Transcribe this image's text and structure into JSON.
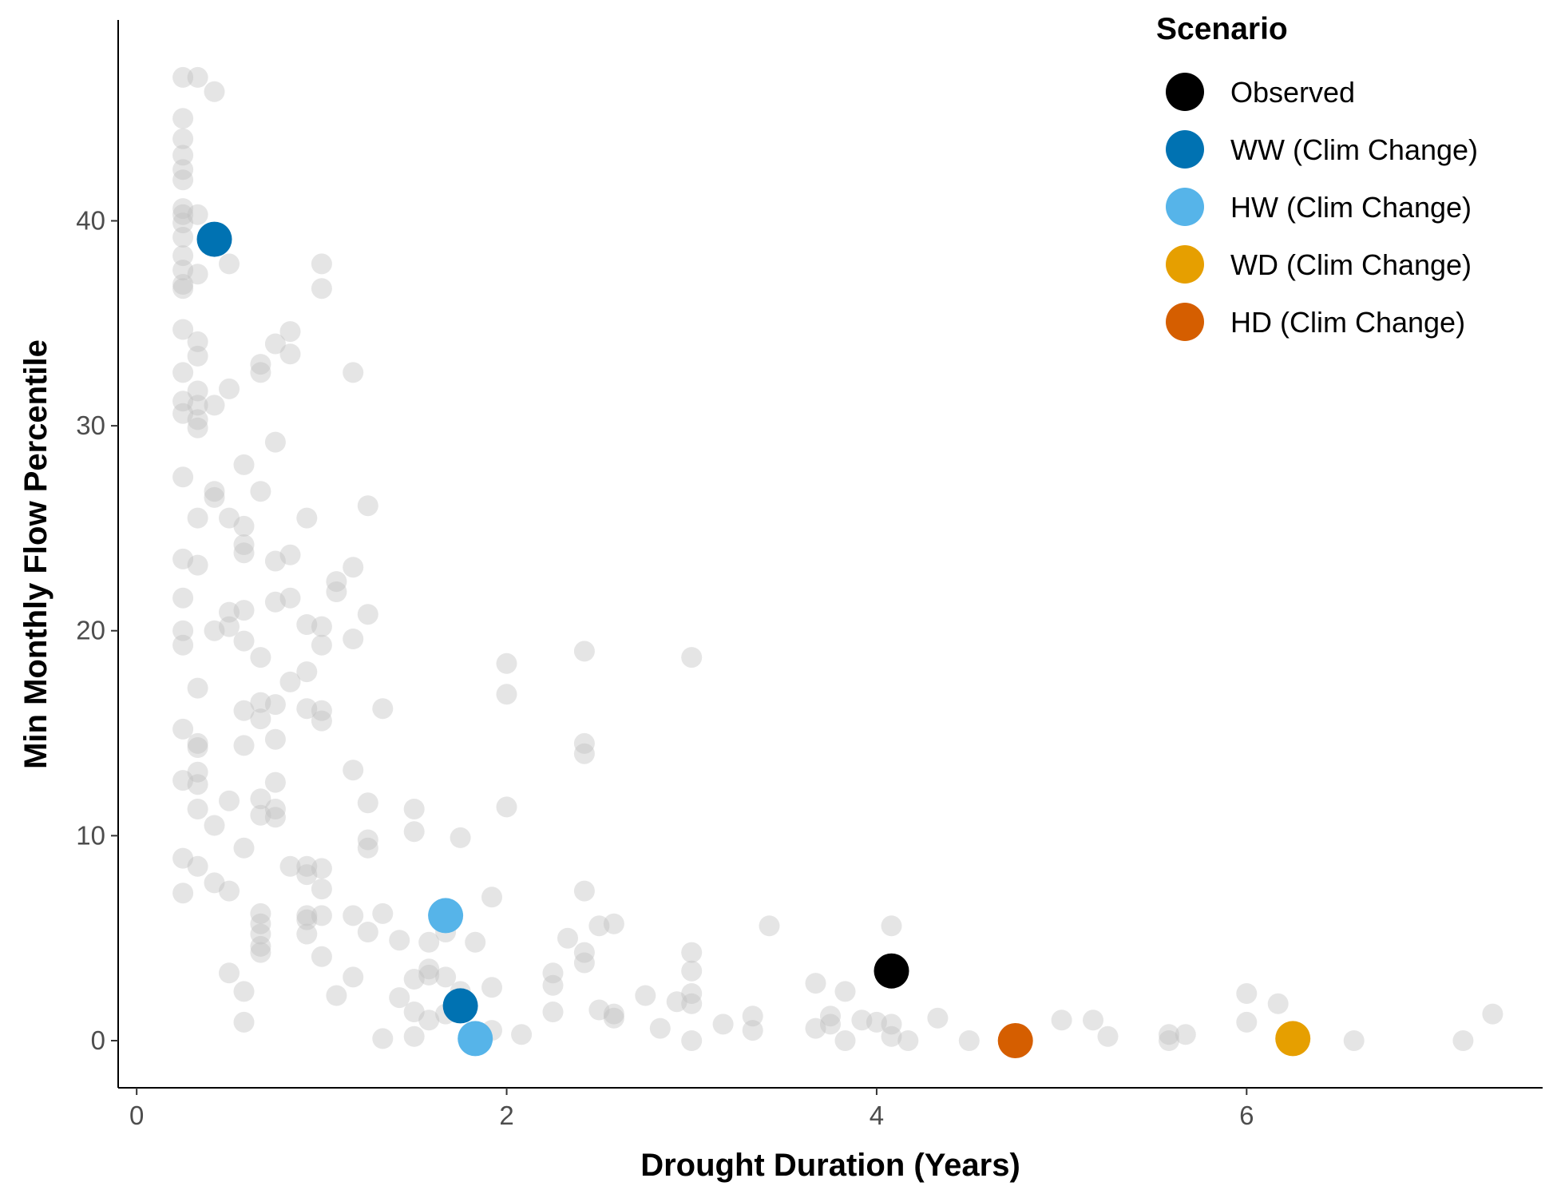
{
  "chart_data": {
    "type": "scatter",
    "xlabel": "Drought Duration (Years)",
    "ylabel": "Min Monthly Flow Percentile",
    "xlim": [
      -0.1,
      7.6
    ],
    "ylim": [
      -2.3,
      49.8
    ],
    "xticks": [
      0,
      2,
      4,
      6
    ],
    "yticks": [
      0,
      10,
      20,
      30,
      40
    ],
    "xtick_labels": [
      "0",
      "2",
      "4",
      "6"
    ],
    "ytick_labels": [
      "0",
      "10",
      "20",
      "30",
      "40"
    ],
    "grid": false,
    "legend": {
      "title": "Scenario",
      "position": "top-right",
      "entries": [
        {
          "label": "Observed",
          "color": "#000000"
        },
        {
          "label": "WW (Clim Change)",
          "color": "#0072B2"
        },
        {
          "label": "HW (Clim Change)",
          "color": "#56B4E9"
        },
        {
          "label": "WD (Clim Change)",
          "color": "#E69F00"
        },
        {
          "label": "HD (Clim Change)",
          "color": "#D55E00"
        }
      ]
    },
    "background_points": {
      "color": "#bebebe",
      "opacity": 0.4,
      "points": [
        [
          0.25,
          47.0
        ],
        [
          0.33,
          47.0
        ],
        [
          0.42,
          46.3
        ],
        [
          0.25,
          45.0
        ],
        [
          0.25,
          44.0
        ],
        [
          0.25,
          43.2
        ],
        [
          0.25,
          42.5
        ],
        [
          0.25,
          42.0
        ],
        [
          0.25,
          40.6
        ],
        [
          0.25,
          40.3
        ],
        [
          0.33,
          40.3
        ],
        [
          0.25,
          39.9
        ],
        [
          0.25,
          39.2
        ],
        [
          0.25,
          38.3
        ],
        [
          0.25,
          37.6
        ],
        [
          0.33,
          37.4
        ],
        [
          0.25,
          36.9
        ],
        [
          0.25,
          36.7
        ],
        [
          0.5,
          37.9
        ],
        [
          0.25,
          34.7
        ],
        [
          0.33,
          34.1
        ],
        [
          0.33,
          33.4
        ],
        [
          0.25,
          32.6
        ],
        [
          0.33,
          31.7
        ],
        [
          0.25,
          31.2
        ],
        [
          0.33,
          31.0
        ],
        [
          0.42,
          31.0
        ],
        [
          0.25,
          30.6
        ],
        [
          0.33,
          30.3
        ],
        [
          0.33,
          29.9
        ],
        [
          0.5,
          31.8
        ],
        [
          0.25,
          27.5
        ],
        [
          0.42,
          26.8
        ],
        [
          0.42,
          26.5
        ],
        [
          0.33,
          25.5
        ],
        [
          0.5,
          25.5
        ],
        [
          0.25,
          23.5
        ],
        [
          0.33,
          23.2
        ],
        [
          0.25,
          21.6
        ],
        [
          0.25,
          20.0
        ],
        [
          0.25,
          19.3
        ],
        [
          0.33,
          17.2
        ],
        [
          0.42,
          20.0
        ],
        [
          0.5,
          20.2
        ],
        [
          0.5,
          20.9
        ],
        [
          0.25,
          15.2
        ],
        [
          0.33,
          14.5
        ],
        [
          0.33,
          14.3
        ],
        [
          0.25,
          12.7
        ],
        [
          0.33,
          13.1
        ],
        [
          0.33,
          12.5
        ],
        [
          0.33,
          11.3
        ],
        [
          0.42,
          10.5
        ],
        [
          0.5,
          11.7
        ],
        [
          0.25,
          8.9
        ],
        [
          0.33,
          8.5
        ],
        [
          0.25,
          7.2
        ],
        [
          0.42,
          7.7
        ],
        [
          0.5,
          7.3
        ],
        [
          0.5,
          3.3
        ],
        [
          0.58,
          2.4
        ],
        [
          0.58,
          0.9
        ],
        [
          0.58,
          28.1
        ],
        [
          0.58,
          25.1
        ],
        [
          0.58,
          24.2
        ],
        [
          0.58,
          23.8
        ],
        [
          0.58,
          21.0
        ],
        [
          0.58,
          19.5
        ],
        [
          0.58,
          16.1
        ],
        [
          0.58,
          14.4
        ],
        [
          0.58,
          9.4
        ],
        [
          0.67,
          33.0
        ],
        [
          0.67,
          32.6
        ],
        [
          0.67,
          26.8
        ],
        [
          0.67,
          18.7
        ],
        [
          0.67,
          16.5
        ],
        [
          0.67,
          15.7
        ],
        [
          0.67,
          11.8
        ],
        [
          0.67,
          11.0
        ],
        [
          0.67,
          6.2
        ],
        [
          0.67,
          5.7
        ],
        [
          0.67,
          5.2
        ],
        [
          0.67,
          4.6
        ],
        [
          0.67,
          4.3
        ],
        [
          0.75,
          34.0
        ],
        [
          0.75,
          29.2
        ],
        [
          0.75,
          23.4
        ],
        [
          0.75,
          21.4
        ],
        [
          0.75,
          16.4
        ],
        [
          0.75,
          14.7
        ],
        [
          0.75,
          12.6
        ],
        [
          0.75,
          11.3
        ],
        [
          0.75,
          10.9
        ],
        [
          0.83,
          34.6
        ],
        [
          0.83,
          33.5
        ],
        [
          0.83,
          23.7
        ],
        [
          0.83,
          21.6
        ],
        [
          0.83,
          17.5
        ],
        [
          0.83,
          8.5
        ],
        [
          0.92,
          25.5
        ],
        [
          0.92,
          20.3
        ],
        [
          0.92,
          18.0
        ],
        [
          0.92,
          16.2
        ],
        [
          0.92,
          8.5
        ],
        [
          0.92,
          8.1
        ],
        [
          0.92,
          6.1
        ],
        [
          0.92,
          5.9
        ],
        [
          0.92,
          5.2
        ],
        [
          1.0,
          37.9
        ],
        [
          1.0,
          36.7
        ],
        [
          1.0,
          20.2
        ],
        [
          1.0,
          19.3
        ],
        [
          1.0,
          16.1
        ],
        [
          1.0,
          15.6
        ],
        [
          1.0,
          8.4
        ],
        [
          1.0,
          7.4
        ],
        [
          1.0,
          6.1
        ],
        [
          1.0,
          4.1
        ],
        [
          1.08,
          22.4
        ],
        [
          1.08,
          21.9
        ],
        [
          1.08,
          2.2
        ],
        [
          1.17,
          32.6
        ],
        [
          1.17,
          23.1
        ],
        [
          1.17,
          19.6
        ],
        [
          1.17,
          13.2
        ],
        [
          1.17,
          6.1
        ],
        [
          1.17,
          3.1
        ],
        [
          1.25,
          26.1
        ],
        [
          1.25,
          20.8
        ],
        [
          1.25,
          11.6
        ],
        [
          1.25,
          9.8
        ],
        [
          1.25,
          9.4
        ],
        [
          1.25,
          5.3
        ],
        [
          1.33,
          16.2
        ],
        [
          1.33,
          6.2
        ],
        [
          1.33,
          0.1
        ],
        [
          1.42,
          4.9
        ],
        [
          1.42,
          2.1
        ],
        [
          1.5,
          11.3
        ],
        [
          1.5,
          10.2
        ],
        [
          1.5,
          3.0
        ],
        [
          1.5,
          1.4
        ],
        [
          1.5,
          0.2
        ],
        [
          1.58,
          4.8
        ],
        [
          1.58,
          3.5
        ],
        [
          1.58,
          3.2
        ],
        [
          1.58,
          1.0
        ],
        [
          1.67,
          5.3
        ],
        [
          1.67,
          3.1
        ],
        [
          1.67,
          1.3
        ],
        [
          1.75,
          9.9
        ],
        [
          1.75,
          2.4
        ],
        [
          1.83,
          4.8
        ],
        [
          1.92,
          7.0
        ],
        [
          1.92,
          2.6
        ],
        [
          1.92,
          0.5
        ],
        [
          2.0,
          18.4
        ],
        [
          2.0,
          16.9
        ],
        [
          2.0,
          11.4
        ],
        [
          2.08,
          0.3
        ],
        [
          2.25,
          3.3
        ],
        [
          2.25,
          2.7
        ],
        [
          2.25,
          1.4
        ],
        [
          2.33,
          5.0
        ],
        [
          2.42,
          19.0
        ],
        [
          2.42,
          14.5
        ],
        [
          2.42,
          14.0
        ],
        [
          2.42,
          7.3
        ],
        [
          2.42,
          4.3
        ],
        [
          2.42,
          3.8
        ],
        [
          2.5,
          5.6
        ],
        [
          2.5,
          1.5
        ],
        [
          2.58,
          5.7
        ],
        [
          2.58,
          1.3
        ],
        [
          2.58,
          1.1
        ],
        [
          2.75,
          2.2
        ],
        [
          2.83,
          0.6
        ],
        [
          2.92,
          1.9
        ],
        [
          3.0,
          18.7
        ],
        [
          3.0,
          4.3
        ],
        [
          3.0,
          3.4
        ],
        [
          3.0,
          2.3
        ],
        [
          3.0,
          1.8
        ],
        [
          3.0,
          0.0
        ],
        [
          3.17,
          0.8
        ],
        [
          3.33,
          1.2
        ],
        [
          3.33,
          0.5
        ],
        [
          3.42,
          5.6
        ],
        [
          3.67,
          2.8
        ],
        [
          3.67,
          0.6
        ],
        [
          3.75,
          1.2
        ],
        [
          3.75,
          0.8
        ],
        [
          3.83,
          2.4
        ],
        [
          3.83,
          0.0
        ],
        [
          3.92,
          1.0
        ],
        [
          4.0,
          0.9
        ],
        [
          4.08,
          5.6
        ],
        [
          4.08,
          0.8
        ],
        [
          4.08,
          0.2
        ],
        [
          4.17,
          0.0
        ],
        [
          4.33,
          1.1
        ],
        [
          4.5,
          0.0
        ],
        [
          5.0,
          1.0
        ],
        [
          5.17,
          1.0
        ],
        [
          5.25,
          0.2
        ],
        [
          5.58,
          0.3
        ],
        [
          5.58,
          0.0
        ],
        [
          5.67,
          0.3
        ],
        [
          6.0,
          2.3
        ],
        [
          6.0,
          0.9
        ],
        [
          6.17,
          1.8
        ],
        [
          6.58,
          0.0
        ],
        [
          7.17,
          0.0
        ],
        [
          7.33,
          1.3
        ]
      ]
    },
    "series": [
      {
        "name": "Observed",
        "color": "#000000",
        "points": [
          [
            4.08,
            3.4
          ]
        ]
      },
      {
        "name": "WW (Clim Change)",
        "color": "#0072B2",
        "points": [
          [
            0.42,
            39.1
          ],
          [
            1.75,
            1.7
          ]
        ]
      },
      {
        "name": "HW (Clim Change)",
        "color": "#56B4E9",
        "points": [
          [
            1.67,
            6.1
          ],
          [
            1.83,
            0.1
          ]
        ]
      },
      {
        "name": "WD (Clim Change)",
        "color": "#E69F00",
        "points": [
          [
            6.25,
            0.1
          ]
        ]
      },
      {
        "name": "HD (Clim Change)",
        "color": "#D55E00",
        "points": [
          [
            4.75,
            0.0
          ]
        ]
      }
    ]
  }
}
